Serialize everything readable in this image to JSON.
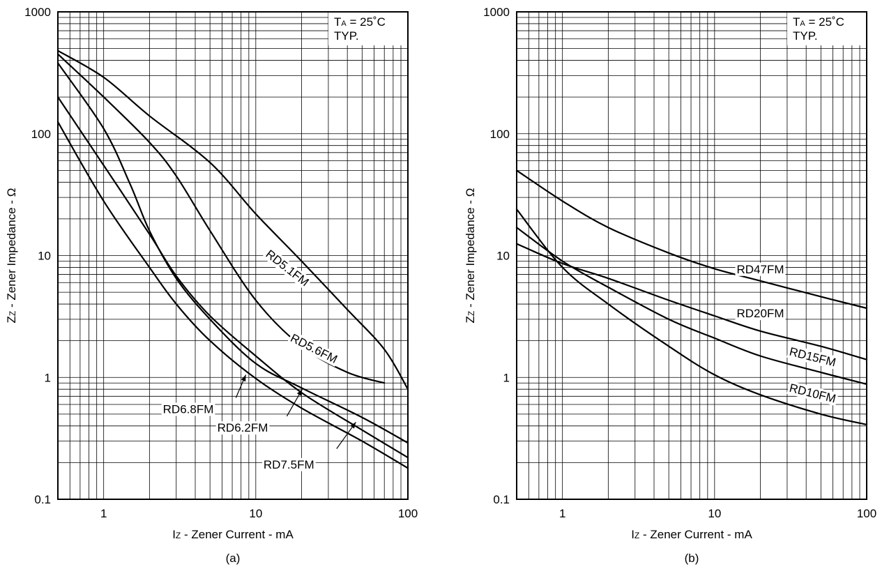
{
  "chart_data": [
    {
      "type": "line",
      "panel_label": "(a)",
      "xlabel": {
        "main": "I",
        "sub": "Z",
        "rest": " - Zener Current - mA"
      },
      "ylabel": {
        "main": "Z",
        "sub": "Z",
        "rest": " - Zener Impedance - Ω"
      },
      "x_scale": "log",
      "y_scale": "log",
      "xlim": [
        0.5,
        100
      ],
      "ylim": [
        0.1,
        1000
      ],
      "x_ticks": [
        {
          "value": 1,
          "label": "1"
        },
        {
          "value": 10,
          "label": "10"
        },
        {
          "value": 100,
          "label": "100"
        }
      ],
      "y_ticks": [
        {
          "value": 0.1,
          "label": "0.1"
        },
        {
          "value": 1,
          "label": "1"
        },
        {
          "value": 10,
          "label": "10"
        },
        {
          "value": 100,
          "label": "100"
        },
        {
          "value": 1000,
          "label": "1000"
        }
      ],
      "grid": true,
      "conditions": {
        "ta_main": "T",
        "ta_sub": "A",
        "ta_rest": " = 25˚C",
        "typ": "TYP."
      },
      "series": [
        {
          "name": "RD5.1FM",
          "points": [
            [
              0.5,
              480
            ],
            [
              1,
              290
            ],
            [
              2,
              140
            ],
            [
              5,
              58
            ],
            [
              10,
              22
            ],
            [
              20,
              9
            ],
            [
              40,
              3.6
            ],
            [
              70,
              1.7
            ],
            [
              100,
              0.8
            ]
          ]
        },
        {
          "name": "RD5.6FM",
          "points": [
            [
              0.5,
              450
            ],
            [
              1,
              200
            ],
            [
              2,
              85
            ],
            [
              3,
              45
            ],
            [
              5,
              16
            ],
            [
              10,
              4.3
            ],
            [
              20,
              1.8
            ],
            [
              40,
              1.1
            ],
            [
              70,
              0.9
            ]
          ]
        },
        {
          "name": "RD6.2FM",
          "points": [
            [
              0.5,
              380
            ],
            [
              1,
              110
            ],
            [
              1.5,
              38
            ],
            [
              2,
              16
            ],
            [
              3,
              6.5
            ],
            [
              5,
              3
            ],
            [
              10,
              1.3
            ],
            [
              20,
              0.82
            ],
            [
              50,
              0.47
            ],
            [
              100,
              0.29
            ]
          ]
        },
        {
          "name": "RD6.8FM",
          "points": [
            [
              0.5,
              200
            ],
            [
              1,
              55
            ],
            [
              2,
              15
            ],
            [
              3,
              6.8
            ],
            [
              5,
              3.2
            ],
            [
              10,
              1.5
            ],
            [
              20,
              0.75
            ],
            [
              50,
              0.37
            ],
            [
              100,
              0.22
            ]
          ]
        },
        {
          "name": "RD7.5FM",
          "points": [
            [
              0.5,
              125
            ],
            [
              1,
              28
            ],
            [
              2,
              8
            ],
            [
              3,
              4
            ],
            [
              5,
              2
            ],
            [
              10,
              0.98
            ],
            [
              20,
              0.56
            ],
            [
              50,
              0.3
            ],
            [
              100,
              0.18
            ]
          ]
        }
      ],
      "curve_labels": [
        {
          "text": "RD5.1FM",
          "x": 16,
          "y": 7.8,
          "rotate": 38
        },
        {
          "text": "RD5.6FM",
          "x": 24,
          "y": 1.7,
          "rotate": 27
        },
        {
          "text": "RD6.8FM",
          "x": 3.6,
          "y": 0.54,
          "rotate": 0
        },
        {
          "text": "RD6.2FM",
          "x": 8.2,
          "y": 0.38,
          "rotate": 0
        },
        {
          "text": "RD7.5FM",
          "x": 16.5,
          "y": 0.19,
          "rotate": 0
        }
      ],
      "pointers": [
        {
          "for": "RD6.8FM",
          "from": [
            7.4,
            0.68
          ],
          "to": [
            8.6,
            1.05
          ]
        },
        {
          "for": "RD6.2FM",
          "from": [
            16,
            0.48
          ],
          "to": [
            20.2,
            0.8
          ]
        },
        {
          "for": "RD7.5FM",
          "from": [
            34,
            0.26
          ],
          "to": [
            45.5,
            0.43
          ]
        }
      ]
    },
    {
      "type": "line",
      "panel_label": "(b)",
      "xlabel": {
        "main": "I",
        "sub": "Z",
        "rest": " - Zener Current - mA"
      },
      "ylabel": {
        "main": "Z",
        "sub": "Z",
        "rest": " - Zener Impedance - Ω"
      },
      "x_scale": "log",
      "y_scale": "log",
      "xlim": [
        0.5,
        100
      ],
      "ylim": [
        0.1,
        1000
      ],
      "x_ticks": [
        {
          "value": 1,
          "label": "1"
        },
        {
          "value": 10,
          "label": "10"
        },
        {
          "value": 100,
          "label": "100"
        }
      ],
      "y_ticks": [
        {
          "value": 0.1,
          "label": "0.1"
        },
        {
          "value": 1,
          "label": "1"
        },
        {
          "value": 10,
          "label": "10"
        },
        {
          "value": 100,
          "label": "100"
        },
        {
          "value": 1000,
          "label": "1000"
        }
      ],
      "grid": true,
      "conditions": {
        "ta_main": "T",
        "ta_sub": "A",
        "ta_rest": " = 25˚C",
        "typ": "TYP."
      },
      "series": [
        {
          "name": "RD47FM",
          "points": [
            [
              0.5,
              50
            ],
            [
              1,
              28
            ],
            [
              2,
              17
            ],
            [
              5,
              10.5
            ],
            [
              10,
              7.8
            ],
            [
              20,
              6.2
            ],
            [
              50,
              4.6
            ],
            [
              100,
              3.7
            ]
          ]
        },
        {
          "name": "RD20FM",
          "points": [
            [
              0.5,
              12.5
            ],
            [
              1,
              8.6
            ],
            [
              2,
              6.5
            ],
            [
              5,
              4.3
            ],
            [
              10,
              3.2
            ],
            [
              20,
              2.4
            ],
            [
              50,
              1.8
            ],
            [
              100,
              1.4
            ]
          ]
        },
        {
          "name": "RD15FM",
          "points": [
            [
              0.5,
              17
            ],
            [
              1,
              9
            ],
            [
              2,
              5.5
            ],
            [
              5,
              3
            ],
            [
              10,
              2.1
            ],
            [
              20,
              1.5
            ],
            [
              50,
              1.1
            ],
            [
              100,
              0.88
            ]
          ]
        },
        {
          "name": "RD10FM",
          "points": [
            [
              0.5,
              24
            ],
            [
              1,
              8
            ],
            [
              2,
              4
            ],
            [
              5,
              1.8
            ],
            [
              10,
              1.05
            ],
            [
              20,
              0.72
            ],
            [
              50,
              0.5
            ],
            [
              100,
              0.41
            ]
          ]
        }
      ],
      "curve_labels": [
        {
          "text": "RD47FM",
          "x": 20,
          "y": 7.6,
          "rotate": 0
        },
        {
          "text": "RD20FM",
          "x": 20,
          "y": 3.3,
          "rotate": 0
        },
        {
          "text": "RD15FM",
          "x": 44,
          "y": 1.45,
          "rotate": 14
        },
        {
          "text": "RD10FM",
          "x": 44,
          "y": 0.73,
          "rotate": 14
        }
      ],
      "pointers": []
    }
  ]
}
